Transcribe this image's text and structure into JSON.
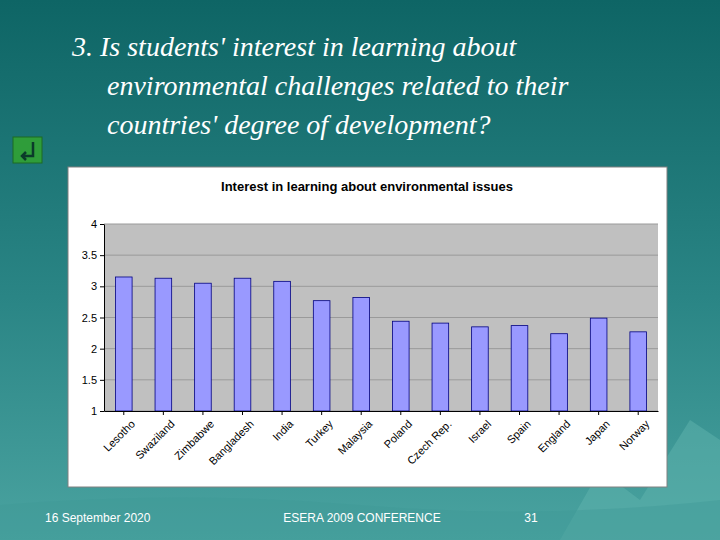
{
  "slide": {
    "heading": [
      "3. Is students' interest in learning about",
      "environmental challenges related to their",
      "countries' degree of development?"
    ],
    "footer": {
      "date": "16 September 2020",
      "conference": "ESERA 2009 CONFERENCE",
      "page": "31"
    }
  },
  "chart_data": {
    "type": "bar",
    "title": "Interest in learning about environmental issues",
    "categories": [
      "Lesotho",
      "Swaziland",
      "Zimbabwe",
      "Bangladesh",
      "India",
      "Turkey",
      "Malaysia",
      "Poland",
      "Czech Rep.",
      "Israel",
      "Spain",
      "England",
      "Japan",
      "Norway"
    ],
    "values": [
      3.15,
      3.13,
      3.05,
      3.13,
      3.08,
      2.77,
      2.82,
      2.44,
      2.41,
      2.35,
      2.37,
      2.24,
      2.49,
      2.27
    ],
    "color": "#9999ff",
    "ylim": [
      1,
      4
    ],
    "yticks": [
      1,
      1.5,
      2,
      2.5,
      3,
      3.5,
      4
    ],
    "grid": true
  }
}
